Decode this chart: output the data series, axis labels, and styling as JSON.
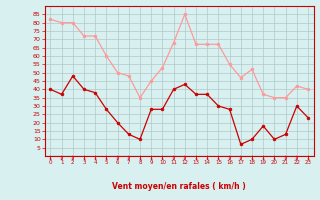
{
  "hours": [
    0,
    1,
    2,
    3,
    4,
    5,
    6,
    7,
    8,
    9,
    10,
    11,
    12,
    13,
    14,
    15,
    16,
    17,
    18,
    19,
    20,
    21,
    22,
    23
  ],
  "wind_mean": [
    40,
    37,
    48,
    40,
    38,
    28,
    20,
    13,
    10,
    28,
    28,
    40,
    43,
    37,
    37,
    30,
    28,
    7,
    10,
    18,
    10,
    13,
    30,
    23
  ],
  "wind_gust": [
    82,
    80,
    80,
    72,
    72,
    60,
    50,
    48,
    35,
    45,
    53,
    68,
    85,
    67,
    67,
    67,
    55,
    47,
    52,
    37,
    35,
    35,
    42,
    40
  ],
  "bg_color": "#d8f0f0",
  "grid_color": "#b0c8c8",
  "mean_color": "#cc0000",
  "gust_color": "#ff9999",
  "xlabel": "Vent moyen/en rafales ( km/h )",
  "xlabel_color": "#cc0000",
  "tick_color": "#cc0000",
  "ylim": [
    0,
    90
  ],
  "yticks": [
    5,
    10,
    15,
    20,
    25,
    30,
    35,
    40,
    45,
    50,
    55,
    60,
    65,
    70,
    75,
    80,
    85
  ]
}
